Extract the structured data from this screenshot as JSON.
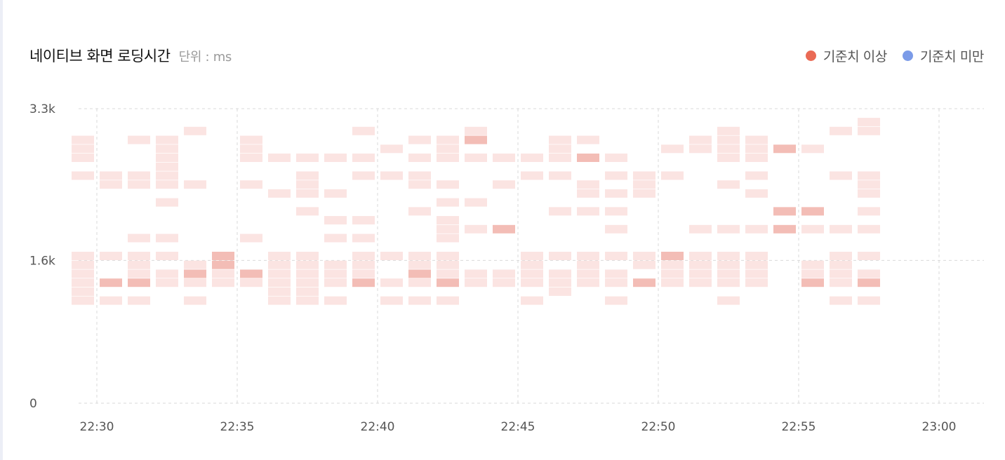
{
  "header": {
    "title": "네이티브 화면 로딩시간",
    "unit": "단위 : ms"
  },
  "legend": [
    {
      "label": "기준치 이상",
      "color": "#ea6a55"
    },
    {
      "label": "기준치 미만",
      "color": "#7b9be8"
    }
  ],
  "colors": {
    "cell_light": "#fbe4e2",
    "cell_dark": "#f3bdb6",
    "grid": "#d9d9d9"
  },
  "chart_data": {
    "type": "heatmap",
    "title": "네이티브 화면 로딩시간",
    "unit": "ms",
    "x_ticks": [
      "22:30",
      "22:35",
      "22:40",
      "22:45",
      "22:50",
      "22:55",
      "23:00"
    ],
    "y_ticks": [
      "0",
      "1.6k",
      "3.3k"
    ],
    "x_range": [
      "22:30",
      "23:00"
    ],
    "y_range": [
      0,
      3300
    ],
    "bucket_minutes": 1,
    "bucket_ms": 100,
    "columns": [
      {
        "time": "22:29",
        "cells": [
          [
            2950,
            0
          ],
          [
            2850,
            0
          ],
          [
            2750,
            0
          ],
          [
            2550,
            0
          ],
          [
            1650,
            0
          ],
          [
            1550,
            0
          ],
          [
            1450,
            0
          ],
          [
            1350,
            0
          ],
          [
            1250,
            0
          ],
          [
            1150,
            0
          ]
        ]
      },
      {
        "time": "22:30",
        "cells": [
          [
            2550,
            0
          ],
          [
            2450,
            0
          ],
          [
            1650,
            0
          ],
          [
            1350,
            1
          ],
          [
            1150,
            0
          ]
        ]
      },
      {
        "time": "22:31",
        "cells": [
          [
            2950,
            0
          ],
          [
            2550,
            0
          ],
          [
            2450,
            0
          ],
          [
            1850,
            0
          ],
          [
            1650,
            0
          ],
          [
            1550,
            0
          ],
          [
            1450,
            0
          ],
          [
            1350,
            1
          ],
          [
            1150,
            0
          ]
        ]
      },
      {
        "time": "22:32",
        "cells": [
          [
            2950,
            0
          ],
          [
            2850,
            0
          ],
          [
            2750,
            0
          ],
          [
            2650,
            0
          ],
          [
            2550,
            0
          ],
          [
            2450,
            0
          ],
          [
            2250,
            0
          ],
          [
            1850,
            0
          ],
          [
            1650,
            0
          ],
          [
            1450,
            0
          ],
          [
            1350,
            0
          ]
        ]
      },
      {
        "time": "22:33",
        "cells": [
          [
            3050,
            0
          ],
          [
            2450,
            0
          ],
          [
            1550,
            0
          ],
          [
            1450,
            1
          ],
          [
            1350,
            0
          ],
          [
            1150,
            0
          ]
        ]
      },
      {
        "time": "22:34",
        "cells": [
          [
            1650,
            1
          ],
          [
            1550,
            1
          ],
          [
            1450,
            0
          ],
          [
            1350,
            0
          ]
        ]
      },
      {
        "time": "22:35",
        "cells": [
          [
            2950,
            0
          ],
          [
            2850,
            0
          ],
          [
            2750,
            0
          ],
          [
            2450,
            0
          ],
          [
            1850,
            0
          ],
          [
            1450,
            1
          ],
          [
            1350,
            0
          ]
        ]
      },
      {
        "time": "22:36",
        "cells": [
          [
            2750,
            0
          ],
          [
            2350,
            0
          ],
          [
            1650,
            0
          ],
          [
            1550,
            0
          ],
          [
            1450,
            0
          ],
          [
            1350,
            0
          ],
          [
            1250,
            0
          ],
          [
            1150,
            0
          ]
        ]
      },
      {
        "time": "22:37",
        "cells": [
          [
            2750,
            0
          ],
          [
            2550,
            0
          ],
          [
            2450,
            0
          ],
          [
            2350,
            0
          ],
          [
            2150,
            0
          ],
          [
            1650,
            0
          ],
          [
            1550,
            0
          ],
          [
            1450,
            0
          ],
          [
            1350,
            0
          ],
          [
            1250,
            0
          ],
          [
            1150,
            0
          ]
        ]
      },
      {
        "time": "22:38",
        "cells": [
          [
            2750,
            0
          ],
          [
            2350,
            0
          ],
          [
            2050,
            0
          ],
          [
            1850,
            0
          ],
          [
            1550,
            0
          ],
          [
            1450,
            0
          ],
          [
            1350,
            0
          ],
          [
            1150,
            0
          ]
        ]
      },
      {
        "time": "22:39",
        "cells": [
          [
            3050,
            0
          ],
          [
            2750,
            0
          ],
          [
            2550,
            0
          ],
          [
            2050,
            0
          ],
          [
            1850,
            0
          ],
          [
            1650,
            0
          ],
          [
            1550,
            0
          ],
          [
            1450,
            0
          ],
          [
            1350,
            1
          ]
        ]
      },
      {
        "time": "22:40",
        "cells": [
          [
            2850,
            0
          ],
          [
            2550,
            0
          ],
          [
            1650,
            0
          ],
          [
            1350,
            0
          ],
          [
            1150,
            0
          ]
        ]
      },
      {
        "time": "22:41",
        "cells": [
          [
            2950,
            0
          ],
          [
            2750,
            0
          ],
          [
            2550,
            0
          ],
          [
            2450,
            0
          ],
          [
            2150,
            0
          ],
          [
            1650,
            0
          ],
          [
            1550,
            0
          ],
          [
            1450,
            1
          ],
          [
            1350,
            0
          ],
          [
            1150,
            0
          ]
        ]
      },
      {
        "time": "22:42",
        "cells": [
          [
            2950,
            0
          ],
          [
            2850,
            0
          ],
          [
            2750,
            0
          ],
          [
            2450,
            0
          ],
          [
            2250,
            0
          ],
          [
            2050,
            0
          ],
          [
            1950,
            0
          ],
          [
            1850,
            0
          ],
          [
            1650,
            0
          ],
          [
            1550,
            0
          ],
          [
            1450,
            0
          ],
          [
            1350,
            1
          ],
          [
            1150,
            0
          ]
        ]
      },
      {
        "time": "22:43",
        "cells": [
          [
            3050,
            0
          ],
          [
            2950,
            1
          ],
          [
            2750,
            0
          ],
          [
            2250,
            0
          ],
          [
            1950,
            0
          ],
          [
            1450,
            0
          ],
          [
            1350,
            0
          ]
        ]
      },
      {
        "time": "22:44",
        "cells": [
          [
            2750,
            0
          ],
          [
            2450,
            0
          ],
          [
            1950,
            1
          ],
          [
            1450,
            0
          ],
          [
            1350,
            0
          ]
        ]
      },
      {
        "time": "22:45",
        "cells": [
          [
            2750,
            0
          ],
          [
            2550,
            0
          ],
          [
            1650,
            0
          ],
          [
            1550,
            0
          ],
          [
            1450,
            0
          ],
          [
            1350,
            0
          ],
          [
            1150,
            0
          ]
        ]
      },
      {
        "time": "22:46",
        "cells": [
          [
            2950,
            0
          ],
          [
            2850,
            0
          ],
          [
            2750,
            0
          ],
          [
            2550,
            0
          ],
          [
            2150,
            0
          ],
          [
            1650,
            0
          ],
          [
            1450,
            0
          ],
          [
            1350,
            0
          ],
          [
            1250,
            0
          ]
        ]
      },
      {
        "time": "22:47",
        "cells": [
          [
            2950,
            0
          ],
          [
            2750,
            1
          ],
          [
            2450,
            0
          ],
          [
            2350,
            0
          ],
          [
            2150,
            0
          ],
          [
            1650,
            0
          ],
          [
            1550,
            0
          ],
          [
            1450,
            0
          ],
          [
            1350,
            0
          ]
        ]
      },
      {
        "time": "22:48",
        "cells": [
          [
            2750,
            0
          ],
          [
            2550,
            0
          ],
          [
            2350,
            0
          ],
          [
            2150,
            0
          ],
          [
            1950,
            0
          ],
          [
            1650,
            0
          ],
          [
            1450,
            0
          ],
          [
            1350,
            0
          ],
          [
            1150,
            0
          ]
        ]
      },
      {
        "time": "22:49",
        "cells": [
          [
            2550,
            0
          ],
          [
            2450,
            0
          ],
          [
            2350,
            0
          ],
          [
            1650,
            0
          ],
          [
            1550,
            0
          ],
          [
            1350,
            1
          ]
        ]
      },
      {
        "time": "22:50",
        "cells": [
          [
            2850,
            0
          ],
          [
            2550,
            0
          ],
          [
            1650,
            1
          ],
          [
            1550,
            0
          ],
          [
            1450,
            0
          ],
          [
            1350,
            0
          ]
        ]
      },
      {
        "time": "22:51",
        "cells": [
          [
            2950,
            0
          ],
          [
            2850,
            0
          ],
          [
            1950,
            0
          ],
          [
            1650,
            0
          ],
          [
            1550,
            0
          ],
          [
            1450,
            0
          ],
          [
            1350,
            0
          ]
        ]
      },
      {
        "time": "22:52",
        "cells": [
          [
            3050,
            0
          ],
          [
            2950,
            0
          ],
          [
            2850,
            0
          ],
          [
            2750,
            0
          ],
          [
            2450,
            0
          ],
          [
            1950,
            0
          ],
          [
            1650,
            0
          ],
          [
            1550,
            0
          ],
          [
            1450,
            0
          ],
          [
            1350,
            0
          ],
          [
            1150,
            0
          ]
        ]
      },
      {
        "time": "22:53",
        "cells": [
          [
            2950,
            0
          ],
          [
            2850,
            0
          ],
          [
            2750,
            0
          ],
          [
            2550,
            0
          ],
          [
            2350,
            0
          ],
          [
            1950,
            0
          ],
          [
            1650,
            0
          ],
          [
            1550,
            0
          ],
          [
            1450,
            0
          ],
          [
            1350,
            0
          ]
        ]
      },
      {
        "time": "22:54",
        "cells": [
          [
            2850,
            1
          ],
          [
            2150,
            1
          ],
          [
            1950,
            1
          ]
        ]
      },
      {
        "time": "22:55",
        "cells": [
          [
            2850,
            0
          ],
          [
            2150,
            1
          ],
          [
            1950,
            0
          ],
          [
            1550,
            0
          ],
          [
            1450,
            0
          ],
          [
            1350,
            1
          ]
        ]
      },
      {
        "time": "22:56",
        "cells": [
          [
            3050,
            0
          ],
          [
            2550,
            0
          ],
          [
            1950,
            0
          ],
          [
            1650,
            0
          ],
          [
            1550,
            0
          ],
          [
            1450,
            0
          ],
          [
            1350,
            0
          ],
          [
            1150,
            0
          ]
        ]
      },
      {
        "time": "22:57",
        "cells": [
          [
            3150,
            0
          ],
          [
            3050,
            0
          ],
          [
            2550,
            0
          ],
          [
            2450,
            0
          ],
          [
            2350,
            0
          ],
          [
            2150,
            0
          ],
          [
            1950,
            0
          ],
          [
            1650,
            0
          ],
          [
            1450,
            0
          ],
          [
            1350,
            1
          ],
          [
            1150,
            0
          ]
        ]
      }
    ]
  }
}
